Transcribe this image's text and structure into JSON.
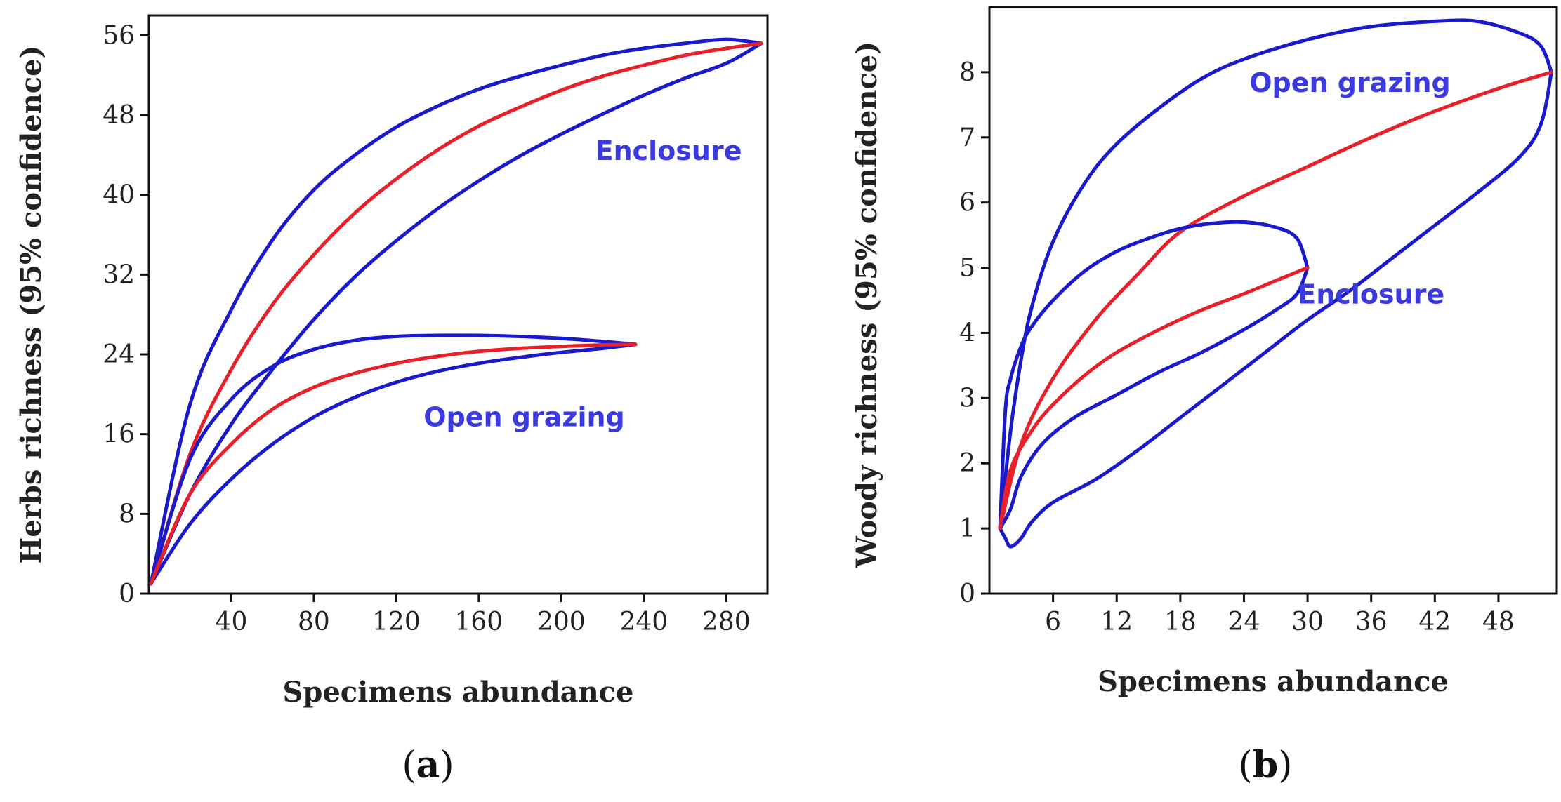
{
  "colors": {
    "bounds": "#1a1acc",
    "mean": "#e8202a",
    "label": "#3a3ae0"
  },
  "chart_data": [
    {
      "panel": "a",
      "type": "line",
      "panel_label": {
        "open": "(",
        "letter": "a",
        "close": ")"
      },
      "xlabel": "Specimens abundance",
      "ylabel": "Herbs richness (95% confidence)",
      "xlim": [
        0,
        300
      ],
      "ylim": [
        0,
        58
      ],
      "xticks": [
        40,
        80,
        120,
        160,
        200,
        240,
        280
      ],
      "yticks": [
        0,
        8,
        16,
        24,
        32,
        40,
        48,
        56
      ],
      "grid": false,
      "series": [
        {
          "name": "Enclosure",
          "label": "Enclosure",
          "label_at": [
            252,
            43.5
          ],
          "mean": {
            "x": [
              1,
              20,
              40,
              60,
              80,
              100,
              120,
              140,
              160,
              180,
              200,
              220,
              240,
              260,
              280,
              297
            ],
            "y": [
              1,
              14,
              22.5,
              29,
              34,
              38.2,
              41.6,
              44.5,
              46.9,
              48.8,
              50.5,
              51.9,
              53,
              54,
              54.7,
              55.2
            ]
          },
          "upper": {
            "x": [
              1,
              20,
              40,
              60,
              80,
              100,
              120,
              140,
              160,
              180,
              200,
              220,
              240,
              260,
              280,
              297
            ],
            "y": [
              1,
              19,
              28.5,
              35.5,
              40.5,
              44,
              46.8,
              48.9,
              50.6,
              51.9,
              53,
              54,
              54.7,
              55.2,
              55.6,
              55.2
            ]
          },
          "lower": {
            "x": [
              1,
              20,
              40,
              60,
              80,
              100,
              120,
              140,
              160,
              180,
              200,
              220,
              240,
              260,
              280,
              297
            ],
            "y": [
              1,
              10,
              17,
              22.5,
              27.5,
              31.8,
              35.4,
              38.6,
              41.4,
              43.9,
              46.1,
              48.1,
              50,
              51.7,
              53.2,
              55.2
            ]
          }
        },
        {
          "name": "Open grazing",
          "label": "Open grazing",
          "label_at": [
            182,
            16.8
          ],
          "mean": {
            "x": [
              1,
              20,
              40,
              60,
              80,
              100,
              120,
              140,
              160,
              180,
              200,
              220,
              236
            ],
            "y": [
              1,
              10,
              15,
              18.5,
              20.7,
              22.1,
              23.1,
              23.8,
              24.3,
              24.6,
              24.8,
              24.95,
              25
            ]
          },
          "upper": {
            "x": [
              1,
              20,
              40,
              60,
              80,
              100,
              120,
              140,
              160,
              180,
              200,
              220,
              236
            ],
            "y": [
              1,
              13.5,
              19.5,
              22.8,
              24.5,
              25.4,
              25.8,
              25.9,
              25.9,
              25.8,
              25.6,
              25.3,
              25
            ]
          },
          "lower": {
            "x": [
              1,
              20,
              40,
              60,
              80,
              100,
              120,
              140,
              160,
              180,
              200,
              220,
              236
            ],
            "y": [
              1,
              7,
              11.5,
              15,
              17.7,
              19.7,
              21.2,
              22.3,
              23.1,
              23.7,
              24.2,
              24.6,
              25
            ]
          }
        }
      ]
    },
    {
      "panel": "b",
      "type": "line",
      "panel_label": {
        "open": "(",
        "letter": "b",
        "close": ")"
      },
      "xlabel": "Specimens abundance",
      "ylabel": "Woody richness  (95% confidence)",
      "xlim": [
        0,
        53.5
      ],
      "ylim": [
        0,
        9
      ],
      "xticks": [
        6,
        12,
        18,
        24,
        30,
        36,
        42,
        48
      ],
      "yticks": [
        0,
        1,
        2,
        3,
        4,
        5,
        6,
        7,
        8
      ],
      "grid": false,
      "series": [
        {
          "name": "Open grazing",
          "label": "Open grazing",
          "label_at": [
            34,
            7.7
          ],
          "mean": {
            "x": [
              1,
              3,
              6,
              10,
              14,
              18,
              24,
              30,
              36,
              42,
              48,
              53
            ],
            "y": [
              1,
              2.3,
              3.3,
              4.2,
              4.9,
              5.55,
              6.1,
              6.55,
              7,
              7.4,
              7.75,
              8
            ]
          },
          "upper": {
            "x": [
              1,
              2,
              3,
              4,
              6,
              9,
              12,
              16,
              20,
              24,
              30,
              36,
              42,
              46,
              50,
              52,
              53
            ],
            "y": [
              1,
              2.5,
              3.6,
              4.4,
              5.4,
              6.3,
              6.9,
              7.45,
              7.9,
              8.2,
              8.5,
              8.7,
              8.78,
              8.78,
              8.6,
              8.4,
              8
            ]
          },
          "lower": {
            "x": [
              1,
              1.5,
              2,
              3,
              4,
              6,
              10,
              14,
              18,
              22,
              26,
              30,
              34,
              38,
              42,
              46,
              50,
              52,
              53
            ],
            "y": [
              1,
              0.85,
              0.72,
              0.85,
              1.1,
              1.4,
              1.75,
              2.2,
              2.7,
              3.2,
              3.7,
              4.2,
              4.65,
              5.15,
              5.65,
              6.15,
              6.7,
              7.2,
              8
            ]
          }
        },
        {
          "name": "Enclosure",
          "label": "Enclosure",
          "label_at": [
            36,
            4.45
          ],
          "mean": {
            "x": [
              1,
              2,
              4,
              6,
              9,
              12,
              16,
              20,
              24,
              27,
              30
            ],
            "y": [
              1,
              1.9,
              2.5,
              2.9,
              3.35,
              3.7,
              4.05,
              4.35,
              4.6,
              4.8,
              5
            ]
          },
          "upper": {
            "x": [
              1,
              1.5,
              2,
              3,
              4,
              6,
              9,
              12,
              15,
              18,
              21,
              24,
              27,
              29,
              30
            ],
            "y": [
              1,
              2.8,
              3.3,
              3.8,
              4.1,
              4.5,
              4.95,
              5.25,
              5.45,
              5.6,
              5.68,
              5.7,
              5.62,
              5.45,
              5
            ]
          },
          "lower": {
            "x": [
              1,
              2,
              3,
              5,
              8,
              12,
              16,
              20,
              24,
              27,
              29,
              30
            ],
            "y": [
              1,
              1.3,
              1.8,
              2.3,
              2.7,
              3.05,
              3.4,
              3.7,
              4.05,
              4.35,
              4.6,
              5
            ]
          }
        }
      ]
    }
  ]
}
